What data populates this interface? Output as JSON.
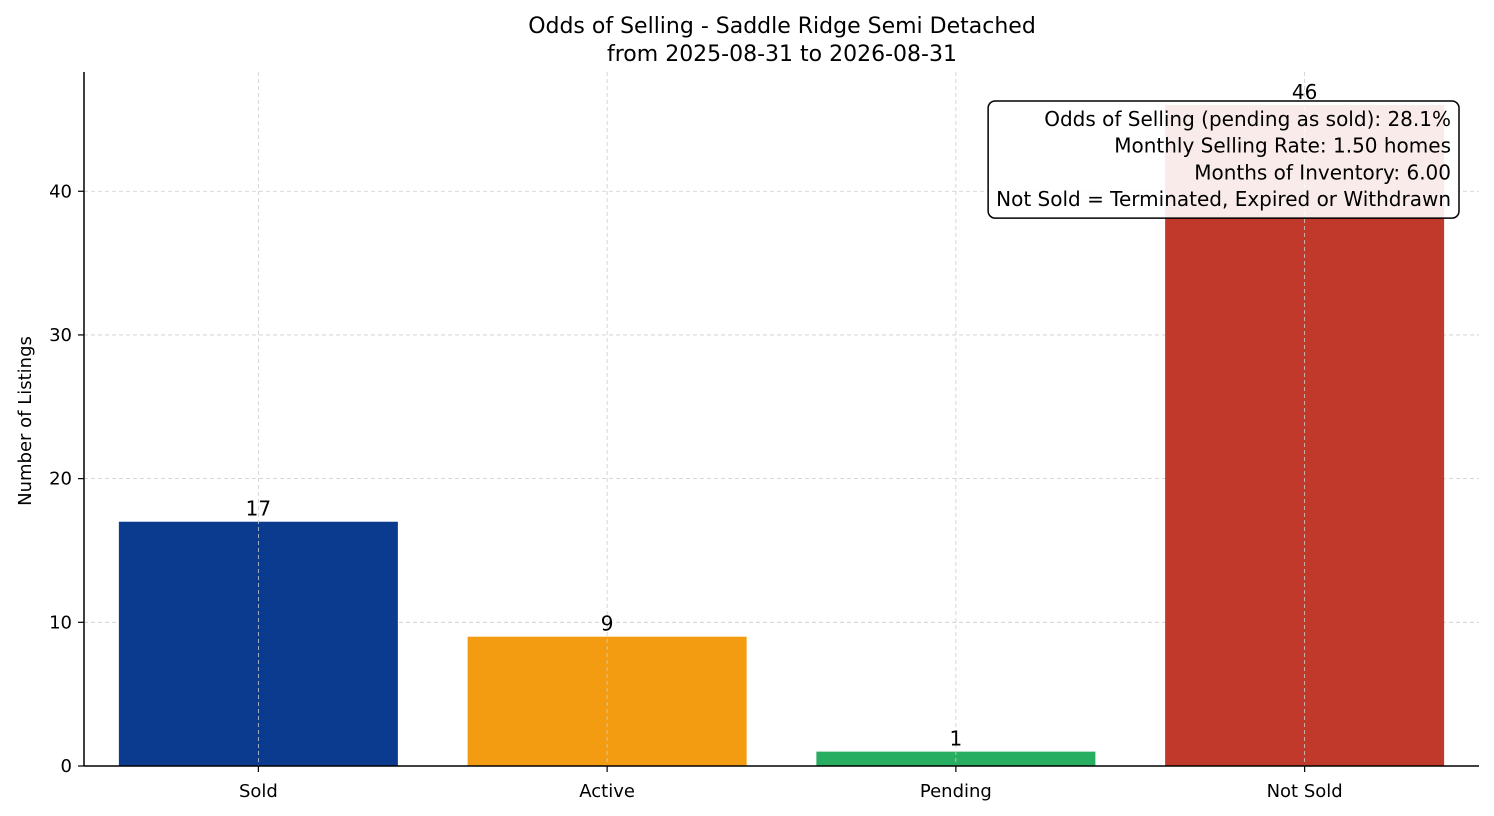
{
  "chart_data": {
    "type": "bar",
    "title": "Odds of Selling - Saddle Ridge Semi Detached",
    "subtitle": "from 2025-08-31 to 2026-08-31",
    "xlabel": "",
    "ylabel": "Number of Listings",
    "categories": [
      "Sold",
      "Active",
      "Pending",
      "Not Sold"
    ],
    "values": [
      17,
      9,
      1,
      46
    ],
    "data_labels": [
      "17",
      "9",
      "1",
      "46"
    ],
    "colors": [
      "#0b3b8f",
      "#f39c12",
      "#27ae60",
      "#c0392b"
    ],
    "ylim": [
      0,
      48.3
    ],
    "yticks": [
      0,
      10,
      20,
      30,
      40
    ],
    "ytick_labels": [
      "0",
      "10",
      "20",
      "30",
      "40"
    ],
    "grid": true,
    "legend": "none",
    "annotation": {
      "placement": "top-right",
      "lines": [
        "Odds of Selling (pending as sold): 28.1%",
        "Monthly Selling Rate: 1.50 homes",
        "Months of Inventory: 6.00",
        "Not Sold = Terminated, Expired or Withdrawn"
      ]
    }
  }
}
